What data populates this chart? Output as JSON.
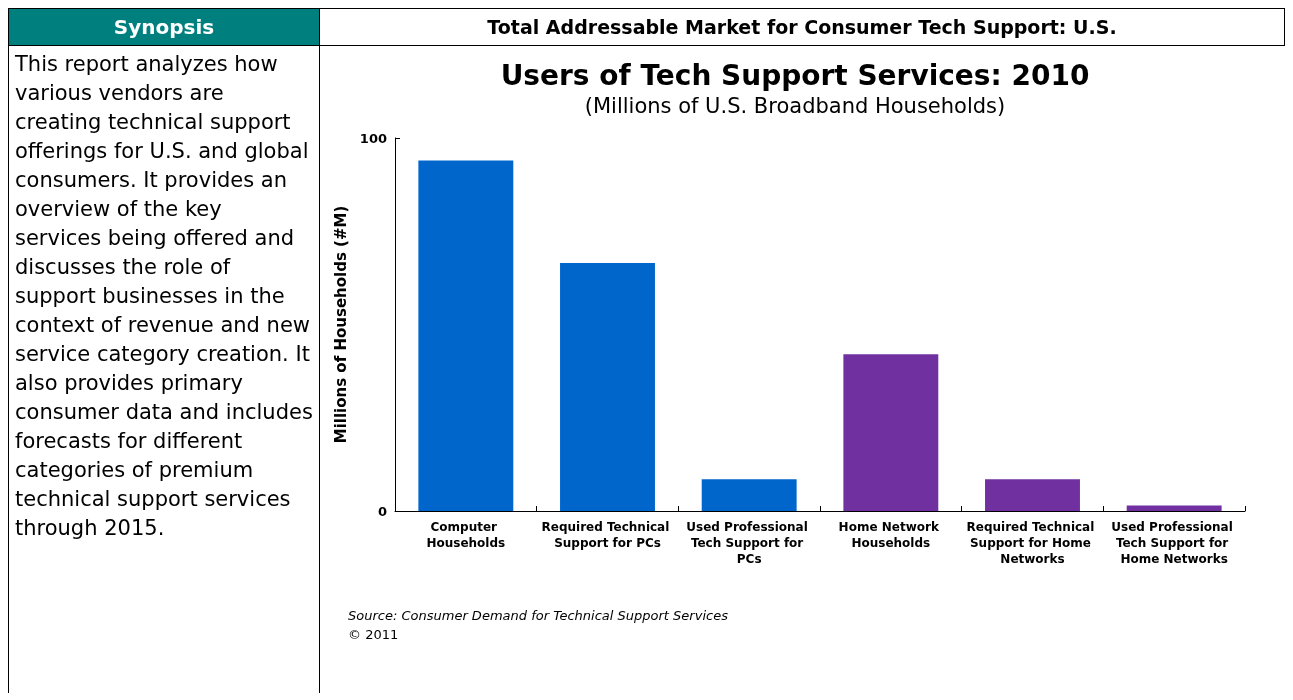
{
  "chart_data": {
    "type": "bar",
    "title": "Users of Tech Support Services: 2010",
    "subtitle": "(Millions of U.S. Broadband Households)",
    "ylabel": "Millions of Households (#M)",
    "categories": [
      "Computer Households",
      "Required Technical Support for PCs",
      "Used Professional Tech Support for PCs",
      "Home Network Households",
      "Required Technical Support for Home Networks",
      "Used Professional Tech Support for Home Networks"
    ],
    "values": [
      94,
      66.5,
      8.5,
      42,
      8.5,
      1.5
    ],
    "colors": [
      "#0066cc",
      "#0066cc",
      "#0066cc",
      "#7030a0",
      "#7030a0",
      "#7030a0"
    ],
    "ylim": [
      0,
      100
    ],
    "yticks": [
      0,
      100
    ],
    "grid": false,
    "annotations": [
      "Synopsis",
      "This report analyzes how various vendors are creating technical support offerings for U.S. and global consumers. It provides an overview of the key services being offered and discusses the role of support businesses in the context of revenue and new service category creation. It also provides primary consumer data and includes forecasts for different categories of premium technical support services through 2015.",
      "Total Addressable Market for Consumer Tech Support: U.S.",
      "Source:  Consumer Demand for Technical Support Services",
      "© 2011"
    ]
  }
}
